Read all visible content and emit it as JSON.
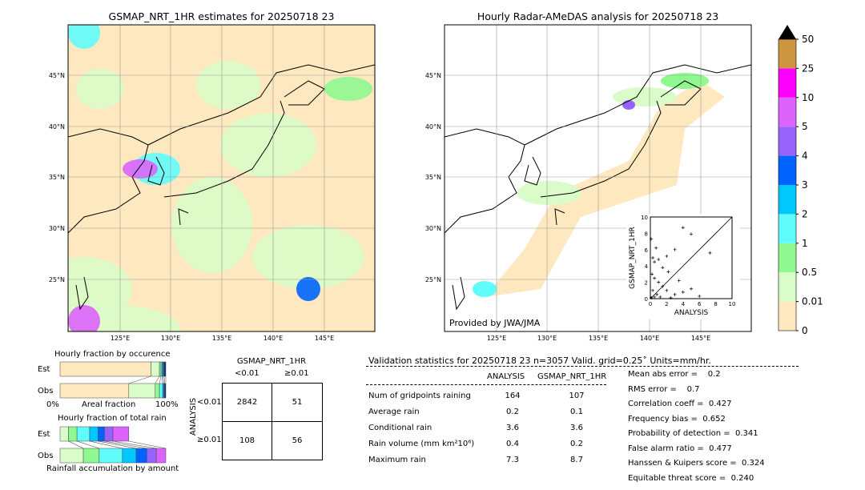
{
  "left_map": {
    "title": "GSMAP_NRT_1HR estimates for 20250718 23"
  },
  "right_map": {
    "title": "Hourly Radar-AMeDAS analysis for 20250718 23",
    "credit": "Provided by JWA/JMA"
  },
  "lon_ticks": [
    "125°E",
    "130°E",
    "135°E",
    "140°E",
    "145°E"
  ],
  "lat_ticks": [
    "45°N",
    "40°N",
    "35°N",
    "30°N",
    "25°N"
  ],
  "colorbar": {
    "labels": [
      "0",
      "0.01",
      "0.5",
      "1",
      "2",
      "3",
      "4",
      "5",
      "10",
      "25",
      "50"
    ],
    "colors": [
      "#fee8c0",
      "#d9fcc8",
      "#90f890",
      "#60fcfc",
      "#00c8fc",
      "#0064fc",
      "#9664fc",
      "#dc64fc",
      "#fc00fc",
      "#cc9640"
    ],
    "over_color": "#000000"
  },
  "chart_data": [
    {
      "type": "scatter",
      "title": "",
      "xlabel": "ANALYSIS",
      "ylabel": "GSMAP_NRT_1HR",
      "xlim": [
        0,
        10
      ],
      "ylim": [
        0,
        10
      ],
      "ticks": [
        "0",
        "2",
        "4",
        "6",
        "8",
        "10"
      ],
      "points": [
        [
          0.1,
          7.3
        ],
        [
          0.3,
          5
        ],
        [
          0.5,
          4.5
        ],
        [
          1,
          4.8
        ],
        [
          2,
          5.2
        ],
        [
          3,
          6
        ],
        [
          4,
          8.7
        ],
        [
          5,
          7.9
        ],
        [
          0.2,
          3
        ],
        [
          0.5,
          2.5
        ],
        [
          1,
          2
        ],
        [
          1.5,
          1.5
        ],
        [
          2,
          1
        ],
        [
          3,
          0.5
        ],
        [
          4,
          0.8
        ],
        [
          5,
          1.2
        ],
        [
          6,
          0.3
        ],
        [
          7.3,
          5.6
        ],
        [
          0.3,
          1
        ],
        [
          0.8,
          0.5
        ],
        [
          1.2,
          0.2
        ],
        [
          2.5,
          0.1
        ],
        [
          0.1,
          0.1
        ],
        [
          0.5,
          0.2
        ],
        [
          3.5,
          2.2
        ],
        [
          2.2,
          3.3
        ],
        [
          0.7,
          6.2
        ],
        [
          1.5,
          3.8
        ]
      ]
    },
    {
      "type": "bar",
      "title": "Hourly fraction by occurence",
      "xlabel": "Areal fraction",
      "rows": [
        "Est",
        "Obs"
      ],
      "xticks": [
        "0%",
        "100%"
      ],
      "series": {
        "Est": [
          0.86,
          0.08,
          0.015,
          0.01,
          0.01,
          0.01,
          0.015
        ],
        "Obs": [
          0.65,
          0.25,
          0.04,
          0.03,
          0.01,
          0.01,
          0.01
        ]
      }
    },
    {
      "type": "bar",
      "title": "Hourly fraction of total rain",
      "xlabel": "Rainfall accumulation by amount",
      "rows": [
        "Est",
        "Obs"
      ],
      "series": {
        "Est": [
          0.08,
          0.08,
          0.12,
          0.08,
          0.06,
          0.08,
          0.15
        ],
        "Obs": [
          0.22,
          0.15,
          0.22,
          0.13,
          0.1,
          0.09,
          0.09
        ]
      }
    },
    {
      "type": "table",
      "title": "GSMAP_NRT_1HR",
      "col_headers": [
        "<0.01",
        "≥0.01"
      ],
      "row_label": "ANALYSIS",
      "row_headers": [
        "<0.01",
        "≥0.01"
      ],
      "cells": [
        [
          "2842",
          "51"
        ],
        [
          "108",
          "56"
        ]
      ]
    }
  ],
  "stats": {
    "header": "Validation statistics for 20250718 23  n=3057 Valid. grid=0.25˚ Units=mm/hr.",
    "cols": [
      "ANALYSIS",
      "GSMAP_NRT_1HR"
    ],
    "rows": [
      [
        "Num of gridpoints raining",
        "164",
        "107"
      ],
      [
        "Average rain",
        "0.2",
        "0.1"
      ],
      [
        "Conditional rain",
        "3.6",
        "3.6"
      ],
      [
        "Rain volume (mm km²10⁶)",
        "0.4",
        "0.2"
      ],
      [
        "Maximum rain",
        "7.3",
        "8.7"
      ]
    ],
    "scores": [
      "Mean abs error =    0.2",
      "RMS error =    0.7",
      "Correlation coeff =  0.427",
      "Frequency bias =  0.652",
      "Probability of detection =  0.341",
      "False alarm ratio =  0.477",
      "Hanssen & Kuipers score =  0.324",
      "Equitable threat score =  0.240"
    ]
  }
}
